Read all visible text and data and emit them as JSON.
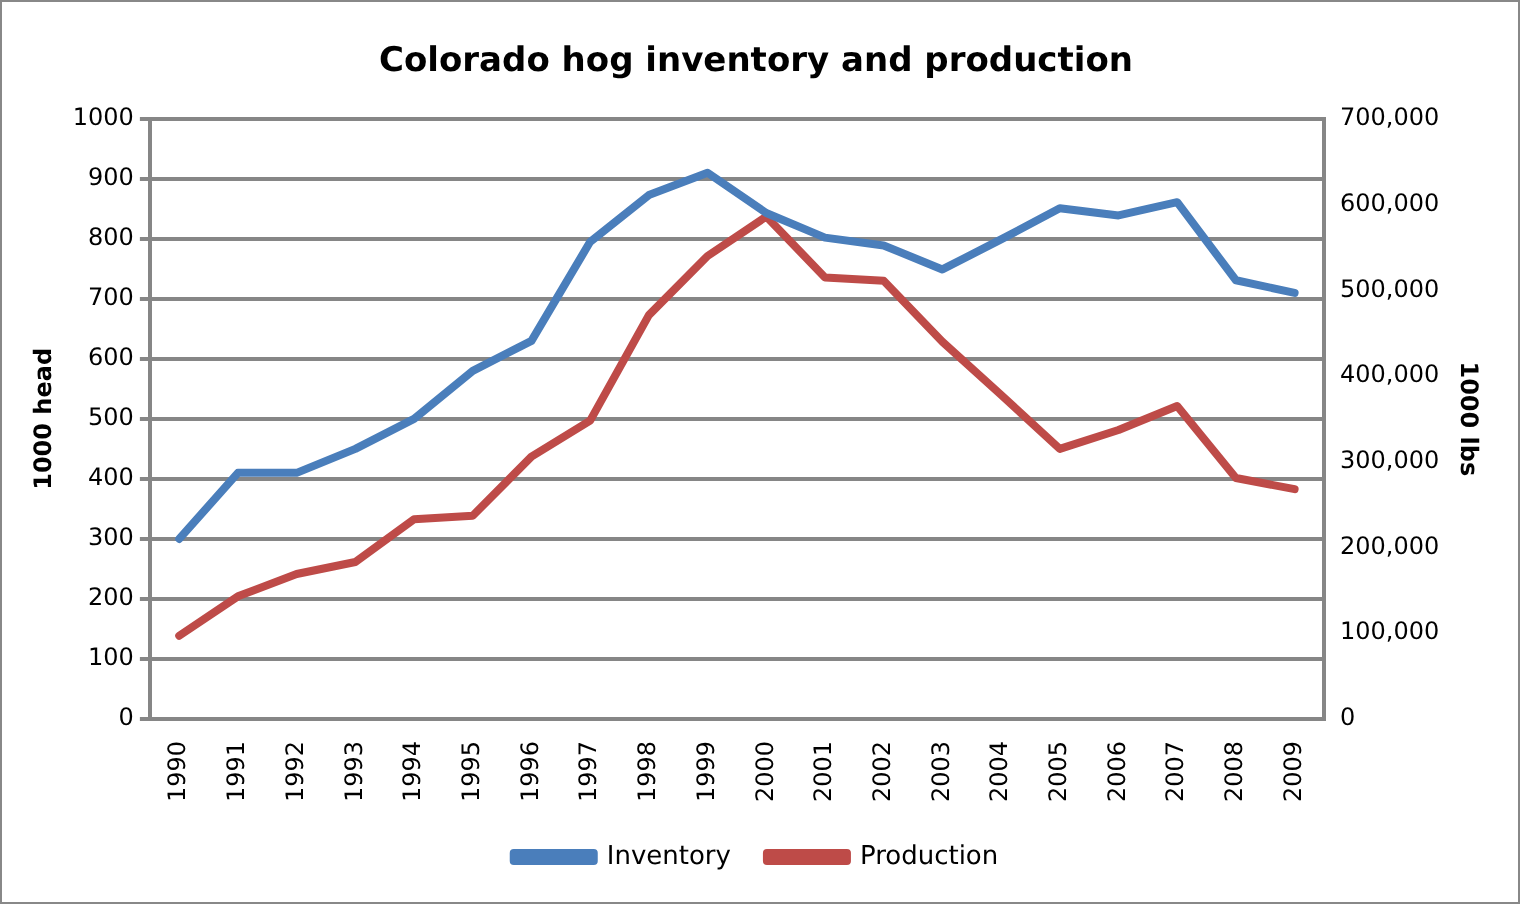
{
  "chart_data": {
    "type": "line",
    "title": "Colorado hog inventory and production",
    "ylabel": "1000 head",
    "y2label": "1000 lbs",
    "categories": [
      "1990",
      "1991",
      "1992",
      "1993",
      "1994",
      "1995",
      "1996",
      "1997",
      "1998",
      "1999",
      "2000",
      "2001",
      "2002",
      "2003",
      "2004",
      "2005",
      "2006",
      "2007",
      "2008",
      "2009"
    ],
    "series": [
      {
        "name": "Inventory",
        "color": "#4a7ebb",
        "values": [
          300,
          410,
          410,
          450,
          500,
          580,
          630,
          795,
          873,
          910,
          843,
          802,
          789,
          749,
          799,
          851,
          839,
          861,
          731,
          710
        ]
      },
      {
        "name": "Production",
        "color": "#be4b48",
        "axis": "y2",
        "values": [
          97000,
          143000,
          169000,
          183000,
          233000,
          237000,
          306000,
          348000,
          471000,
          540000,
          586000,
          515000,
          511000,
          440000,
          378000,
          315000,
          337000,
          365000,
          281000,
          268000
        ]
      }
    ],
    "ylim": [
      0,
      1000
    ],
    "yticks": [
      0,
      100,
      200,
      300,
      400,
      500,
      600,
      700,
      800,
      900,
      1000
    ],
    "y2lim": [
      0,
      700000
    ],
    "y2ticks": [
      0,
      {
        "value": 100000,
        "label": "100,000"
      },
      {
        "value": 200000,
        "label": "200,000"
      },
      {
        "value": 300000,
        "label": "300,000"
      },
      {
        "value": 400000,
        "label": "400,000"
      },
      {
        "value": 500000,
        "label": "500,000"
      },
      {
        "value": 600000,
        "label": "600,000"
      },
      {
        "value": 700000,
        "label": "700,000"
      }
    ],
    "grid": "y",
    "legend": "bottom",
    "marker": "none",
    "line_style": "solid"
  }
}
